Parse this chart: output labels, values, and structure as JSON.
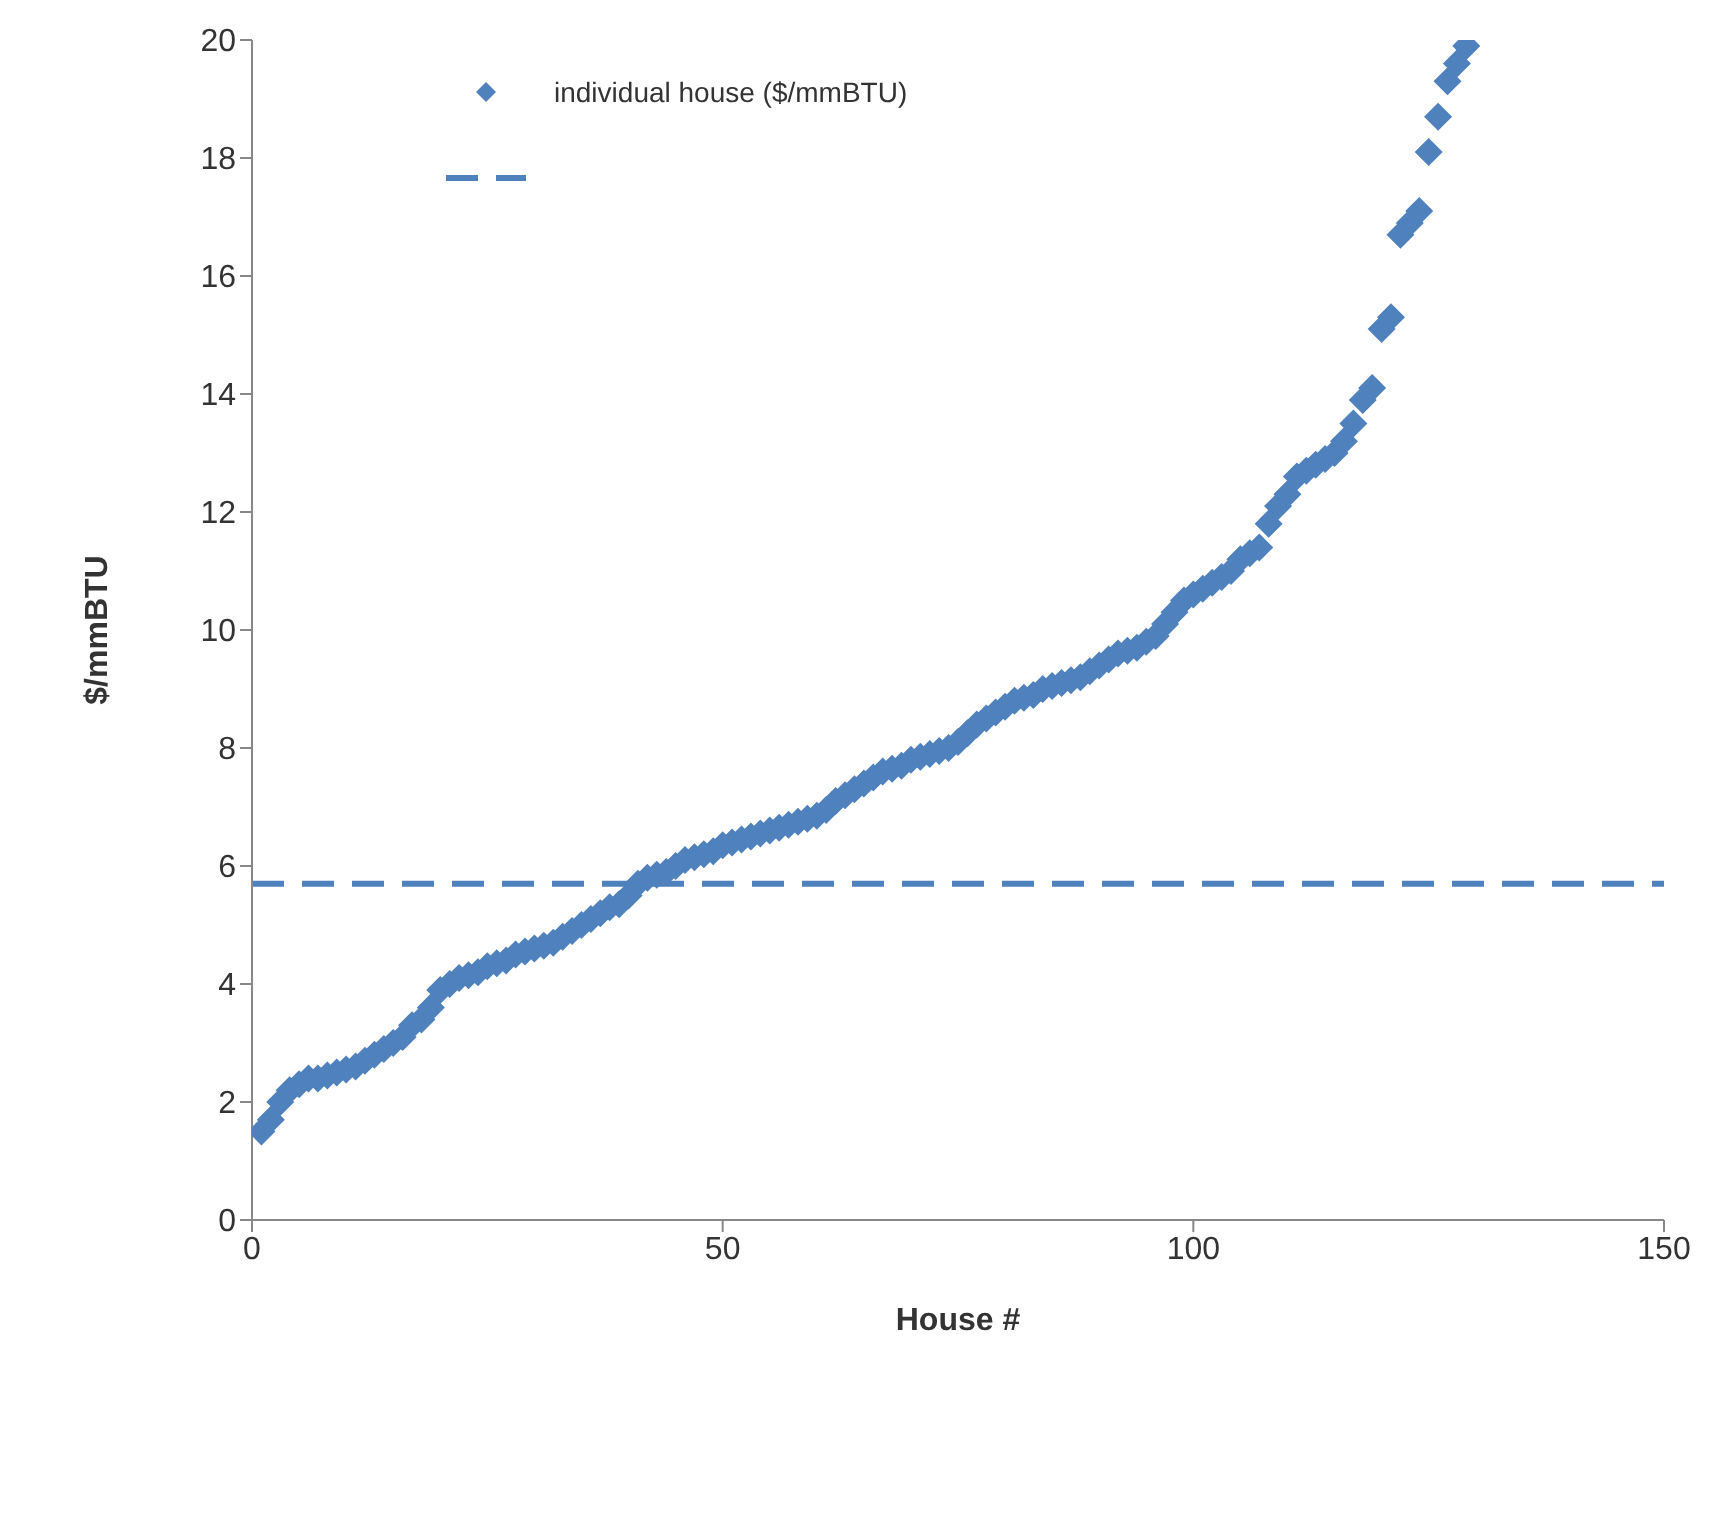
{
  "chart_data": {
    "type": "scatter",
    "xlabel": "House #",
    "ylabel": "$/mmBTU",
    "xlim": [
      0,
      150
    ],
    "xticks": [
      0,
      50,
      100,
      150
    ],
    "ylim": [
      0,
      20
    ],
    "yticks": [
      0,
      2,
      4,
      6,
      8,
      10,
      12,
      14,
      16,
      18,
      20
    ],
    "grid": false,
    "legend": "top left",
    "marker": "diamond",
    "x": [
      1,
      2,
      3,
      4,
      5,
      6,
      7,
      8,
      9,
      10,
      11,
      12,
      13,
      14,
      15,
      16,
      17,
      18,
      19,
      20,
      21,
      22,
      23,
      24,
      25,
      26,
      27,
      28,
      29,
      30,
      31,
      32,
      33,
      34,
      35,
      36,
      37,
      38,
      39,
      40,
      41,
      42,
      43,
      44,
      45,
      46,
      47,
      48,
      49,
      50,
      51,
      52,
      53,
      54,
      55,
      56,
      57,
      58,
      59,
      60,
      61,
      62,
      63,
      64,
      65,
      66,
      67,
      68,
      69,
      70,
      71,
      72,
      73,
      74,
      75,
      76,
      77,
      78,
      79,
      80,
      81,
      82,
      83,
      84,
      85,
      86,
      87,
      88,
      89,
      90,
      91,
      92,
      93,
      94,
      95,
      96,
      97,
      98,
      99,
      100,
      101,
      102,
      103,
      104,
      105,
      106,
      107,
      108,
      109,
      110,
      111,
      112,
      113,
      114,
      115,
      116,
      117,
      118,
      119,
      120,
      121,
      122,
      123,
      124,
      125,
      126,
      127,
      128,
      129
    ],
    "series": [
      {
        "name": "individual house ($/mmBTU)",
        "color": "#4f81bd",
        "values": [
          1.5,
          1.7,
          2.0,
          2.2,
          2.3,
          2.4,
          2.4,
          2.45,
          2.5,
          2.55,
          2.6,
          2.7,
          2.8,
          2.9,
          3.0,
          3.1,
          3.3,
          3.4,
          3.6,
          3.9,
          4.0,
          4.1,
          4.15,
          4.2,
          4.3,
          4.35,
          4.4,
          4.5,
          4.55,
          4.6,
          4.65,
          4.7,
          4.8,
          4.9,
          5.0,
          5.1,
          5.2,
          5.3,
          5.35,
          5.5,
          5.7,
          5.8,
          5.85,
          5.9,
          6.0,
          6.1,
          6.15,
          6.2,
          6.25,
          6.35,
          6.4,
          6.45,
          6.5,
          6.55,
          6.6,
          6.65,
          6.7,
          6.75,
          6.8,
          6.85,
          6.95,
          7.1,
          7.2,
          7.3,
          7.4,
          7.5,
          7.6,
          7.65,
          7.7,
          7.8,
          7.85,
          7.9,
          7.95,
          8.0,
          8.1,
          8.25,
          8.4,
          8.5,
          8.6,
          8.7,
          8.8,
          8.85,
          8.9,
          9.0,
          9.05,
          9.1,
          9.15,
          9.2,
          9.3,
          9.4,
          9.5,
          9.6,
          9.65,
          9.7,
          9.8,
          9.9,
          10.1,
          10.3,
          10.5,
          10.6,
          10.7,
          10.8,
          10.9,
          11.0,
          11.2,
          11.3,
          11.4,
          11.8,
          12.1,
          12.3,
          12.6,
          12.7,
          12.8,
          12.9,
          13.0,
          13.2,
          13.5,
          13.9,
          14.1,
          15.1,
          15.3,
          16.7,
          16.9,
          17.1,
          18.1,
          18.7,
          19.3,
          19.6,
          19.9
        ]
      }
    ],
    "ref_lines": [
      {
        "axis": "y",
        "value": 5.7,
        "color": "#4f81bd",
        "line_style": "dashed"
      }
    ]
  }
}
